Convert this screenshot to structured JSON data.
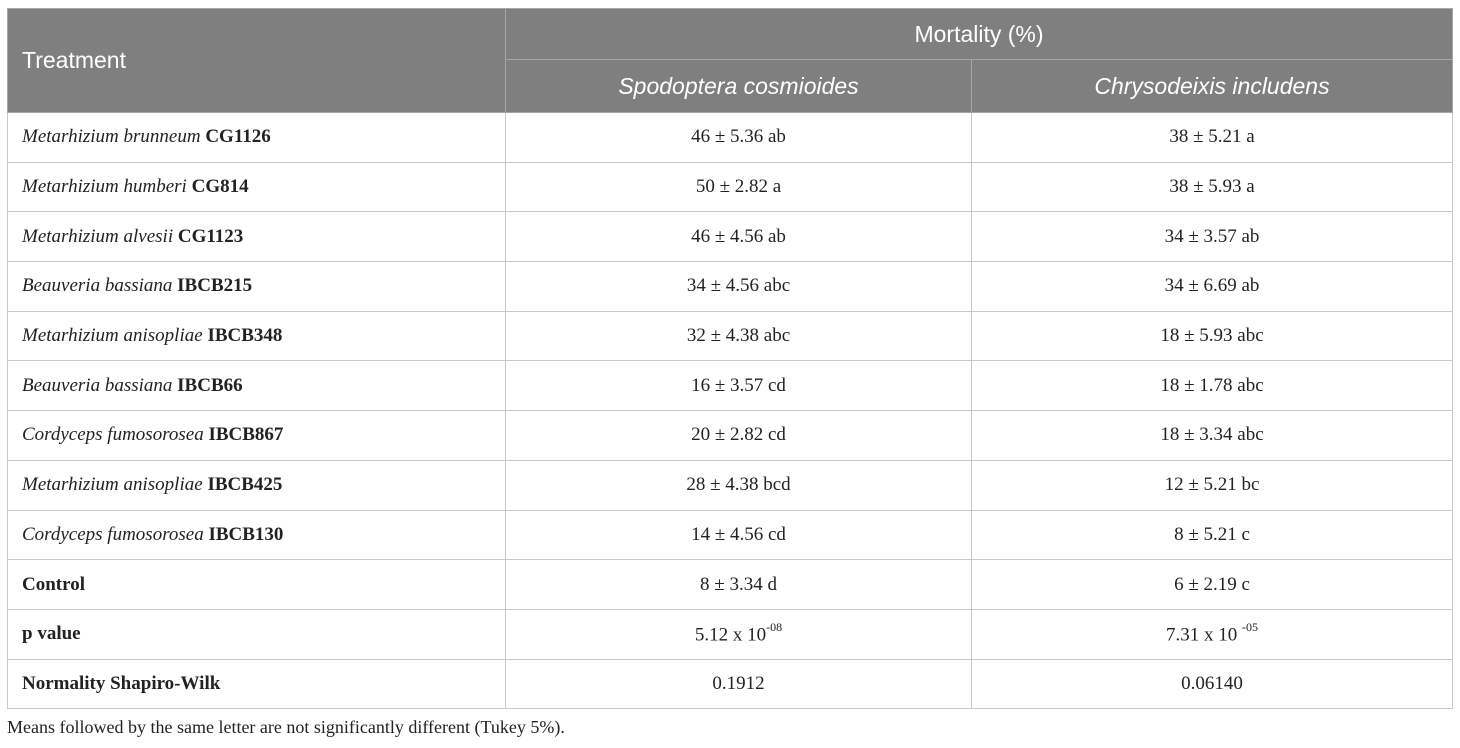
{
  "header": {
    "treatment": "Treatment",
    "mortality": "Mortality (%)",
    "species1": "Spodoptera cosmioides",
    "species2": "Chrysodeixis includens"
  },
  "rows": [
    {
      "genus_species": "Metarhizium brunneum",
      "strain": "CG1126",
      "s1": "46 ± 5.36 ab",
      "s2": "38 ± 5.21 a"
    },
    {
      "genus_species": "Metarhizium humberi",
      "strain": "CG814",
      "s1": "50 ± 2.82 a",
      "s2": "38 ± 5.93 a"
    },
    {
      "genus_species": "Metarhizium alvesii",
      "strain": "CG1123",
      "s1": "46 ± 4.56 ab",
      "s2": "34 ± 3.57 ab"
    },
    {
      "genus_species": "Beauveria bassiana",
      "strain": "IBCB215",
      "s1": "34 ± 4.56 abc",
      "s2": "34 ± 6.69 ab"
    },
    {
      "genus_species": "Metarhizium anisopliae",
      "strain": "IBCB348",
      "s1": "32 ± 4.38 abc",
      "s2": "18 ± 5.93 abc"
    },
    {
      "genus_species": "Beauveria bassiana",
      "strain": "IBCB66",
      "s1": "16 ± 3.57 cd",
      "s2": "18 ± 1.78 abc"
    },
    {
      "genus_species": "Cordyceps fumosorosea",
      "strain": "IBCB867",
      "s1": "20 ± 2.82 cd",
      "s2": "18 ± 3.34 abc"
    },
    {
      "genus_species": "Metarhizium anisopliae",
      "strain": "IBCB425",
      "s1": "28 ± 4.38 bcd",
      "s2": "12 ± 5.21 bc"
    },
    {
      "genus_species": "Cordyceps fumosorosea",
      "strain": "IBCB130",
      "s1": "14 ± 4.56 cd",
      "s2": "8 ± 5.21 c"
    }
  ],
  "control": {
    "label": "Control",
    "s1": "8 ± 3.34 d",
    "s2": "6 ± 2.19 c"
  },
  "pvalue": {
    "label": "p value",
    "s1_base": "5.12 x 10",
    "s1_exp": "-08",
    "s2_base": "7.31 x 10 ",
    "s2_exp": "-05"
  },
  "normality": {
    "label": "Normality Shapiro-Wilk",
    "s1": "0.1912",
    "s2": "0.06140"
  },
  "footnote": "Means followed by the same letter are not significantly different (Tukey 5%)."
}
